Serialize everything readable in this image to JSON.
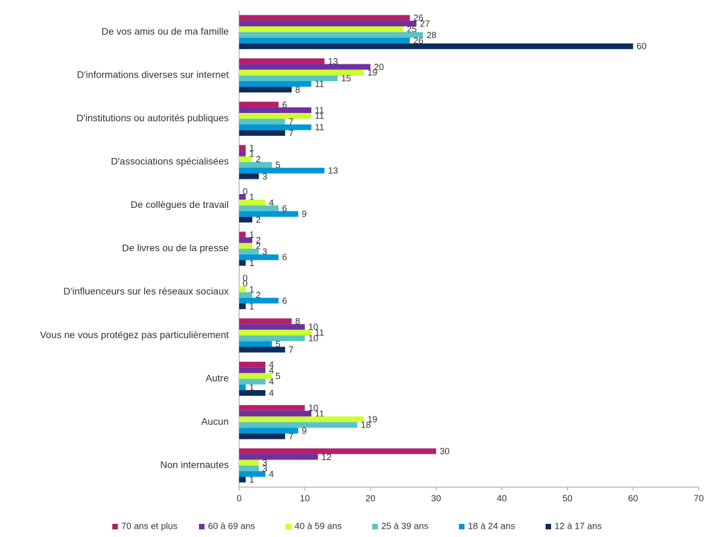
{
  "chart_data": {
    "type": "bar",
    "orientation": "horizontal",
    "categories": [
      "De vos amis ou de ma famille",
      "D'informations diverses sur internet",
      "D'institutions ou autorités publiques",
      "D'associations spécialisées",
      "De collègues de travail",
      "De livres ou de la presse",
      "D'influenceurs sur les réseaux sociaux",
      "Vous ne vous protégez pas particulièrement",
      "Autre",
      "Aucun",
      "Non internautes"
    ],
    "series": [
      {
        "name": "70 ans et plus",
        "color": "#b5206a",
        "values": [
          26,
          13,
          6,
          1,
          0,
          1,
          0,
          8,
          4,
          10,
          30
        ]
      },
      {
        "name": "60 à 69 ans",
        "color": "#7030a0",
        "values": [
          27,
          20,
          11,
          1,
          1,
          2,
          0,
          10,
          4,
          11,
          12
        ]
      },
      {
        "name": "40 à 59 ans",
        "color": "#ccff33",
        "values": [
          25,
          19,
          11,
          2,
          4,
          2,
          1,
          11,
          5,
          19,
          3
        ]
      },
      {
        "name": "25 à 39 ans",
        "color": "#5bc4c4",
        "values": [
          28,
          15,
          7,
          5,
          6,
          3,
          2,
          10,
          4,
          18,
          3
        ]
      },
      {
        "name": "18 à 24 ans",
        "color": "#0097d8",
        "values": [
          26,
          11,
          11,
          13,
          9,
          6,
          6,
          5,
          1,
          9,
          4
        ]
      },
      {
        "name": "12 à 17 ans",
        "color": "#0b2d5c",
        "values": [
          60,
          8,
          7,
          3,
          2,
          1,
          1,
          7,
          4,
          7,
          1
        ]
      }
    ],
    "xlim": [
      0,
      70
    ],
    "xticks": [
      0,
      10,
      20,
      30,
      40,
      50,
      60,
      70
    ],
    "legend": "bottom"
  }
}
